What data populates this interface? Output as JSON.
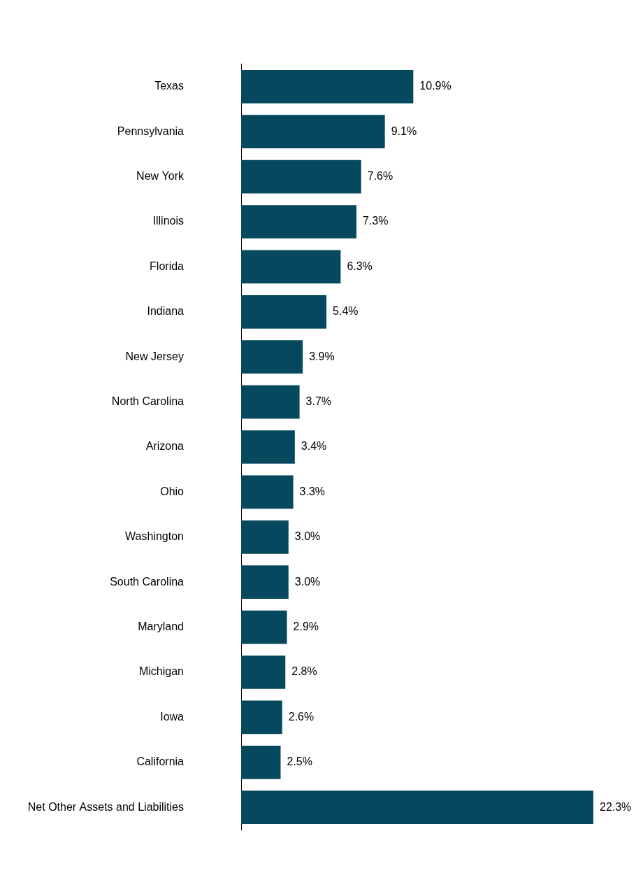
{
  "chart_data": {
    "type": "bar",
    "orientation": "horizontal",
    "categories": [
      "Texas",
      "Pennsylvania",
      "New York",
      "Illinois",
      "Florida",
      "Indiana",
      "New Jersey",
      "North Carolina",
      "Arizona",
      "Ohio",
      "Washington",
      "South Carolina",
      "Maryland",
      "Michigan",
      "Iowa",
      "California",
      "Net Other Assets and Liabilities"
    ],
    "values": [
      10.9,
      9.1,
      7.6,
      7.3,
      6.3,
      5.4,
      3.9,
      3.7,
      3.4,
      3.3,
      3.0,
      3.0,
      2.9,
      2.8,
      2.6,
      2.5,
      22.3
    ],
    "value_labels": [
      "10.9%",
      "9.1%",
      "7.6%",
      "7.3%",
      "6.3%",
      "5.4%",
      "3.9%",
      "3.7%",
      "3.4%",
      "3.3%",
      "3.0%",
      "3.0%",
      "2.9%",
      "2.8%",
      "2.6%",
      "2.5%",
      "22.3%"
    ],
    "color": "#06485e",
    "xlim": [
      0,
      25
    ],
    "grid": false,
    "data_labels": true,
    "tick_labels": "y"
  }
}
